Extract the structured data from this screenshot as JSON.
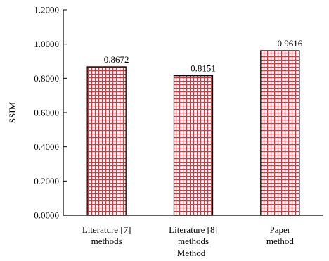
{
  "chart_data": {
    "type": "bar",
    "title": "",
    "xlabel": "Method",
    "ylabel": "SSIM",
    "ylim": [
      0,
      1.2
    ],
    "yticks": [
      "0.0000",
      "0.2000",
      "0.4000",
      "0.6000",
      "0.8000",
      "1.0000",
      "1.2000"
    ],
    "categories": [
      [
        "Literature [7]",
        "methods"
      ],
      [
        "Literature [8]",
        "methods"
      ],
      [
        "Paper",
        "method"
      ]
    ],
    "values": [
      0.8672,
      0.8151,
      0.9616
    ],
    "value_labels": [
      "0.8672",
      "0.8151",
      "0.9616"
    ],
    "bar_fill": "#ffffff",
    "bar_pattern_color": "#e8303a",
    "bar_edge": "#000000",
    "grid": false
  }
}
